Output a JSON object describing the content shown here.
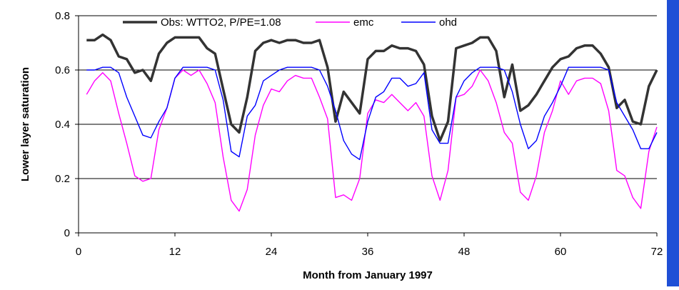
{
  "chart_data": {
    "type": "line",
    "xlabel": "Month from January 1997",
    "ylabel": "Lower layer saturation",
    "xlim": [
      0,
      72
    ],
    "ylim": [
      0,
      0.8
    ],
    "xticks": [
      0,
      12,
      24,
      36,
      48,
      60,
      72
    ],
    "xtick_labels": [
      "0",
      "12",
      "24",
      "36",
      "48",
      "60",
      "72"
    ],
    "yticks": [
      0,
      0.2,
      0.4,
      0.6,
      0.8
    ],
    "ytick_labels": [
      "0",
      "0.2",
      "0.4",
      "0.6",
      "0.8"
    ],
    "grid": "horizontal",
    "legend_position": "top",
    "accent_strip_color": "#1f4fd6",
    "x": [
      1,
      2,
      3,
      4,
      5,
      6,
      7,
      8,
      9,
      10,
      11,
      12,
      13,
      14,
      15,
      16,
      17,
      18,
      19,
      20,
      21,
      22,
      23,
      24,
      25,
      26,
      27,
      28,
      29,
      30,
      31,
      32,
      33,
      34,
      35,
      36,
      37,
      38,
      39,
      40,
      41,
      42,
      43,
      44,
      45,
      46,
      47,
      48,
      49,
      50,
      51,
      52,
      53,
      54,
      55,
      56,
      57,
      58,
      59,
      60,
      61,
      62,
      63,
      64,
      65,
      66,
      67,
      68,
      69,
      70,
      71,
      72
    ],
    "series": [
      {
        "name": "Obs: WTTO2, P/PE=1.08",
        "color": "#333333",
        "width": 3.5,
        "values": [
          0.71,
          0.71,
          0.73,
          0.71,
          0.65,
          0.64,
          0.59,
          0.6,
          0.56,
          0.66,
          0.7,
          0.72,
          0.72,
          0.72,
          0.72,
          0.68,
          0.66,
          0.53,
          0.4,
          0.37,
          0.5,
          0.67,
          0.7,
          0.71,
          0.7,
          0.71,
          0.71,
          0.7,
          0.7,
          0.71,
          0.61,
          0.41,
          0.52,
          0.48,
          0.44,
          0.64,
          0.67,
          0.67,
          0.69,
          0.68,
          0.68,
          0.67,
          0.62,
          0.43,
          0.34,
          0.41,
          0.68,
          0.69,
          0.7,
          0.72,
          0.72,
          0.67,
          0.5,
          0.62,
          0.45,
          0.47,
          0.51,
          0.56,
          0.61,
          0.64,
          0.65,
          0.68,
          0.69,
          0.69,
          0.66,
          0.61,
          0.46,
          0.49,
          0.41,
          0.4,
          0.54,
          0.6
        ]
      },
      {
        "name": "emc",
        "color": "#ff00ff",
        "width": 1.4,
        "values": [
          0.51,
          0.56,
          0.59,
          0.56,
          0.44,
          0.33,
          0.21,
          0.19,
          0.2,
          0.38,
          0.46,
          0.57,
          0.6,
          0.58,
          0.6,
          0.55,
          0.48,
          0.28,
          0.12,
          0.08,
          0.16,
          0.36,
          0.47,
          0.53,
          0.52,
          0.56,
          0.58,
          0.57,
          0.57,
          0.5,
          0.42,
          0.13,
          0.14,
          0.12,
          0.2,
          0.44,
          0.49,
          0.48,
          0.51,
          0.48,
          0.45,
          0.48,
          0.43,
          0.21,
          0.12,
          0.23,
          0.5,
          0.51,
          0.54,
          0.6,
          0.56,
          0.48,
          0.37,
          0.33,
          0.15,
          0.12,
          0.21,
          0.37,
          0.45,
          0.56,
          0.51,
          0.56,
          0.57,
          0.57,
          0.55,
          0.45,
          0.23,
          0.21,
          0.13,
          0.09,
          0.3,
          0.39
        ]
      },
      {
        "name": "ohd",
        "color": "#0000ff",
        "width": 1.4,
        "values": [
          0.6,
          0.6,
          0.61,
          0.61,
          0.59,
          0.5,
          0.43,
          0.36,
          0.35,
          0.41,
          0.46,
          0.57,
          0.61,
          0.61,
          0.61,
          0.61,
          0.6,
          0.49,
          0.3,
          0.28,
          0.43,
          0.47,
          0.56,
          0.58,
          0.6,
          0.61,
          0.61,
          0.61,
          0.61,
          0.6,
          0.54,
          0.45,
          0.34,
          0.29,
          0.27,
          0.41,
          0.5,
          0.52,
          0.57,
          0.57,
          0.54,
          0.55,
          0.59,
          0.38,
          0.33,
          0.33,
          0.5,
          0.56,
          0.59,
          0.61,
          0.61,
          0.61,
          0.6,
          0.52,
          0.4,
          0.31,
          0.34,
          0.43,
          0.48,
          0.54,
          0.61,
          0.61,
          0.61,
          0.61,
          0.61,
          0.6,
          0.48,
          0.43,
          0.38,
          0.31,
          0.31,
          0.37
        ]
      }
    ]
  }
}
